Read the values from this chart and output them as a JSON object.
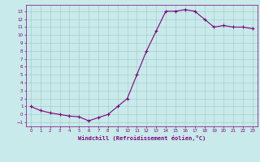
{
  "x": [
    0,
    1,
    2,
    3,
    4,
    5,
    6,
    7,
    8,
    9,
    10,
    11,
    12,
    13,
    14,
    15,
    16,
    17,
    18,
    19,
    20,
    21,
    22,
    23
  ],
  "y": [
    1,
    0.5,
    0.2,
    0.0,
    -0.2,
    -0.3,
    -0.8,
    -0.4,
    0.0,
    1.0,
    2.0,
    5.0,
    8.0,
    10.5,
    13.0,
    13.0,
    13.2,
    13.0,
    12.0,
    11.0,
    11.2,
    11.0,
    11.0,
    10.8
  ],
  "xlabel": "Windchill (Refroidissement éolien,°C)",
  "line_color": "#800080",
  "marker": "+",
  "bg_color": "#c8eaea",
  "grid_color": "#a8cccc",
  "tick_color": "#800080",
  "label_color": "#800080",
  "ylim": [
    -1.5,
    13.8
  ],
  "xlim": [
    -0.5,
    23.5
  ],
  "yticks": [
    -1,
    0,
    1,
    2,
    3,
    4,
    5,
    6,
    7,
    8,
    9,
    10,
    11,
    12,
    13
  ],
  "xticks": [
    0,
    1,
    2,
    3,
    4,
    5,
    6,
    7,
    8,
    9,
    10,
    11,
    12,
    13,
    14,
    15,
    16,
    17,
    18,
    19,
    20,
    21,
    22,
    23
  ]
}
